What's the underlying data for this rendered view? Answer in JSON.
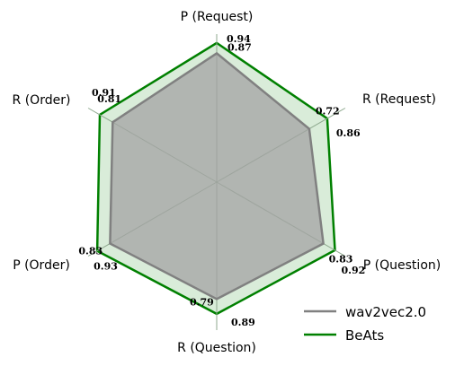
{
  "chart_data": {
    "type": "radar",
    "axes": [
      "P (Request)",
      "R (Request)",
      "P (Question)",
      "R (Question)",
      "P (Order)",
      "R (Order)"
    ],
    "series": [
      {
        "name": "wav2vec2.0",
        "values": [
          0.87,
          0.72,
          0.83,
          0.79,
          0.83,
          0.81
        ],
        "color": "#808080",
        "fill": "#a3a3a3"
      },
      {
        "name": "BeAts",
        "values": [
          0.94,
          0.86,
          0.92,
          0.89,
          0.93,
          0.91
        ],
        "color": "#008000",
        "fill": "#d9ecd9"
      }
    ],
    "value_labels": [
      [
        "0.87",
        "0.72",
        "0.83",
        "0.79",
        "0.83",
        "0.81"
      ],
      [
        "0.94",
        "0.86",
        "0.92",
        "0.89",
        "0.93",
        "0.91"
      ]
    ],
    "grid": true,
    "legend_position": "bottom-right"
  }
}
